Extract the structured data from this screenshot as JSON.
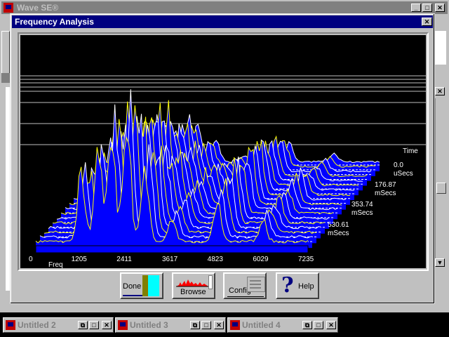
{
  "app": {
    "title": "Wave SE®"
  },
  "dialog": {
    "title": "Frequency Analysis",
    "close_glyph": "✕"
  },
  "taskbar": [
    {
      "title": "Untitled 2"
    },
    {
      "title": "Untitled 3"
    },
    {
      "title": "Untitled 4"
    }
  ],
  "buttons": {
    "done": "Done",
    "browse": "Browse",
    "config": "Config",
    "help": "Help"
  },
  "colors": {
    "background": "#000000",
    "surface": "#0000ff",
    "trace": "#ffff00",
    "gridline": "#c0c0c0"
  },
  "chart_data": {
    "type": "area",
    "subtype": "3d-waterfall",
    "xlabel": "Freq",
    "x_ticks": [
      "0",
      "1205",
      "2411",
      "3617",
      "4823",
      "6029",
      "7235"
    ],
    "depth_label": "Time",
    "time_ticks": [
      {
        "value": "0.0",
        "unit": "uSecs"
      },
      {
        "value": "176.87",
        "unit": "mSecs"
      },
      {
        "value": "353.74",
        "unit": "mSecs"
      },
      {
        "value": "530.61",
        "unit": "mSecs"
      }
    ],
    "slices": 18,
    "peaks_freq": [
      1205,
      1800,
      2411,
      2900,
      3617,
      4823,
      6029
    ]
  }
}
